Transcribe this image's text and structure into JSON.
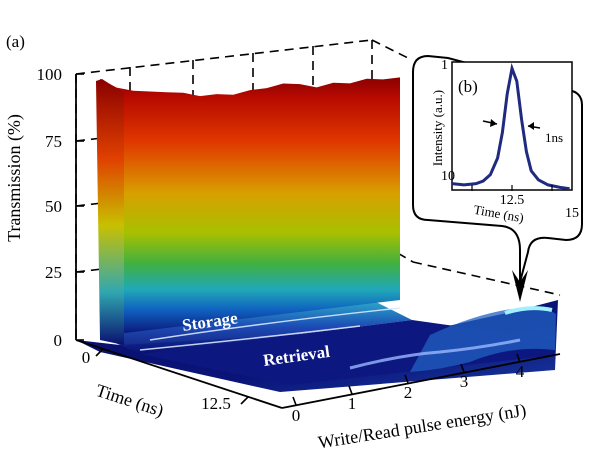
{
  "panel_a": {
    "label": "(a)",
    "y_ticks": [
      "0",
      "25",
      "50",
      "75",
      "100"
    ],
    "time_ticks": [
      "0",
      "12.5"
    ],
    "energy_ticks": [
      "0",
      "1",
      "2",
      "3",
      "4"
    ],
    "ylabel": "Transmission (%)",
    "time_label": "Time (ns)",
    "energy_label": "Write/Read pulse energy (nJ)",
    "annotations": {
      "storage": "Storage",
      "retrieval": "Retrieval"
    }
  },
  "panel_b": {
    "label": "(b)",
    "y_ticks": [
      "1"
    ],
    "x_ticks": [
      "10",
      "12.5",
      "15"
    ],
    "ylabel": "Intensity (a.u.)",
    "xlabel": "Time (ns)",
    "width_label": "1ns"
  },
  "colors": {
    "surface_top": "#a80000",
    "surface_mid": "#c8c800",
    "surface_low": "#20a8b8",
    "surface_floor": "#0a1070",
    "inset_line": "#1f2a80"
  },
  "chart_data": [
    {
      "type": "area",
      "panel": "(a)",
      "xlabel": "Write/Read pulse energy (nJ)",
      "ylabel": "Transmission (%)",
      "zlabel": "Time (ns)",
      "xlim": [
        0,
        4.5
      ],
      "ylim": [
        0,
        100
      ],
      "surface_3d": true,
      "colormap": "jet",
      "series": [
        {
          "name": "Storage",
          "x": [
            0,
            0.25,
            0.5,
            0.75,
            1.0,
            1.25,
            1.5,
            1.75,
            2.0,
            2.25,
            2.5,
            2.75,
            3.0,
            3.25,
            3.5,
            3.75,
            4.0,
            4.25,
            4.5
          ],
          "values": [
            97,
            93,
            91,
            90,
            89,
            88,
            86,
            86,
            85,
            86,
            86,
            87,
            86,
            84,
            85,
            84,
            85,
            84,
            84
          ]
        },
        {
          "name": "Retrieval",
          "x": [
            0,
            0.5,
            1.0,
            1.5,
            2.0,
            2.5,
            3.0,
            3.5,
            4.0,
            4.5
          ],
          "values": [
            1,
            1,
            1,
            1.5,
            2,
            3,
            4,
            5,
            6,
            7
          ]
        }
      ],
      "grid": true
    },
    {
      "type": "line",
      "panel": "(b)",
      "xlabel": "Time (ns)",
      "ylabel": "Intensity (a.u.)",
      "xlim": [
        10,
        15
      ],
      "ylim": [
        0,
        1
      ],
      "series": [
        {
          "x": [
            10.0,
            10.5,
            11.0,
            11.3,
            11.6,
            11.9,
            12.1,
            12.3,
            12.5,
            12.7,
            12.9,
            13.1,
            13.3,
            13.6,
            14.0,
            14.5,
            14.9
          ],
          "values": [
            0.05,
            0.04,
            0.05,
            0.07,
            0.12,
            0.25,
            0.45,
            0.75,
            0.95,
            0.85,
            0.55,
            0.3,
            0.15,
            0.08,
            0.04,
            0.02,
            0.01
          ]
        }
      ],
      "fwhm_annotation": "1ns"
    }
  ]
}
